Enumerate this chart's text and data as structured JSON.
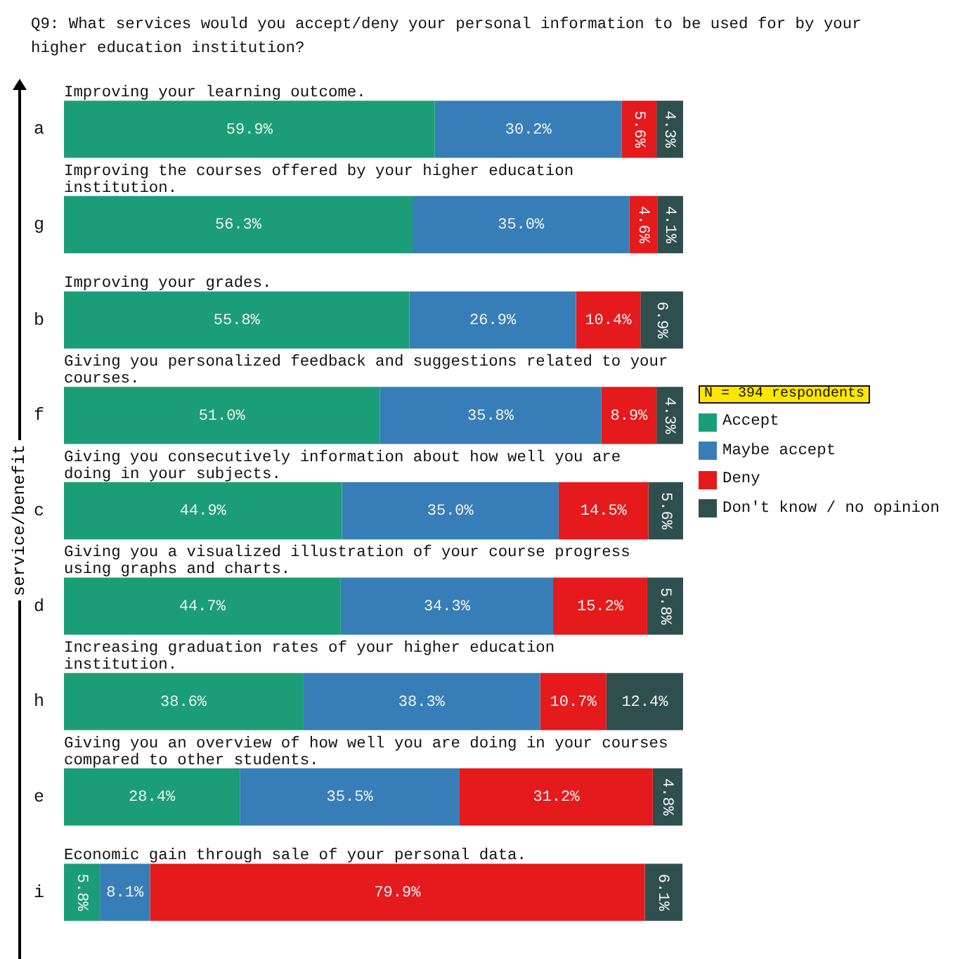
{
  "chart_data": {
    "type": "bar",
    "orientation": "horizontal",
    "stacked": true,
    "title": "Q9: What services would you accept/deny your personal information to be used for by your higher education institution?",
    "ylabel": "service/benefit",
    "categories": [
      "a",
      "g",
      "b",
      "f",
      "c",
      "d",
      "h",
      "e",
      "i"
    ],
    "series": [
      {
        "name": "Accept",
        "color": "#1b9e77",
        "values": [
          59.9,
          56.3,
          55.8,
          51.0,
          44.9,
          44.7,
          38.6,
          28.4,
          5.8
        ],
        "value_labels": [
          "59.9%",
          "56.3%",
          "55.8%",
          "51.0%",
          "44.9%",
          "44.7%",
          "38.6%",
          "28.4%",
          "5.8%"
        ]
      },
      {
        "name": "Maybe accept",
        "color": "#377eb8",
        "values": [
          30.2,
          35.0,
          26.9,
          35.8,
          35.0,
          34.3,
          38.3,
          35.5,
          8.1
        ],
        "value_labels": [
          "30.2%",
          "35.0%",
          "26.9%",
          "35.8%",
          "35.0%",
          "34.3%",
          "38.3%",
          "35.5%",
          "8.1%"
        ]
      },
      {
        "name": "Deny",
        "color": "#e41a1c",
        "values": [
          5.6,
          4.6,
          10.4,
          8.9,
          14.5,
          15.2,
          10.7,
          31.2,
          79.9
        ],
        "value_labels": [
          "5.6%",
          "4.6%",
          "10.4%",
          "8.9%",
          "14.5%",
          "15.2%",
          "10.7%",
          "31.2%",
          "79.9%"
        ]
      },
      {
        "name": "Don't know / no opinion",
        "color": "#2f4f4f",
        "values": [
          4.3,
          4.1,
          6.9,
          4.3,
          5.6,
          5.8,
          12.4,
          4.8,
          6.1
        ],
        "value_labels": [
          "4.3%",
          "4.1%",
          "6.9%",
          "4.3%",
          "5.6%",
          "5.8%",
          "12.4%",
          "4.8%",
          "6.1%"
        ]
      }
    ],
    "xlim": [
      0,
      100
    ],
    "tick_labels": "y",
    "legend": "right",
    "annotations": [
      "Improving your learning outcome.",
      "Improving the courses offered by your higher education institution.",
      "Improving your grades.",
      "Giving you personalized feedback and suggestions related to your courses.",
      "Giving you consecutively information about how well you are doing in your subjects.",
      "Giving you a visualized illustration of your course progress using graphs and charts.",
      "Increasing graduation rates of your higher education institution.",
      "Giving you an overview of how well you are doing in your courses compared to other students.",
      "Economic gain through sale of your personal data.",
      "N = 394 respondents"
    ]
  }
}
